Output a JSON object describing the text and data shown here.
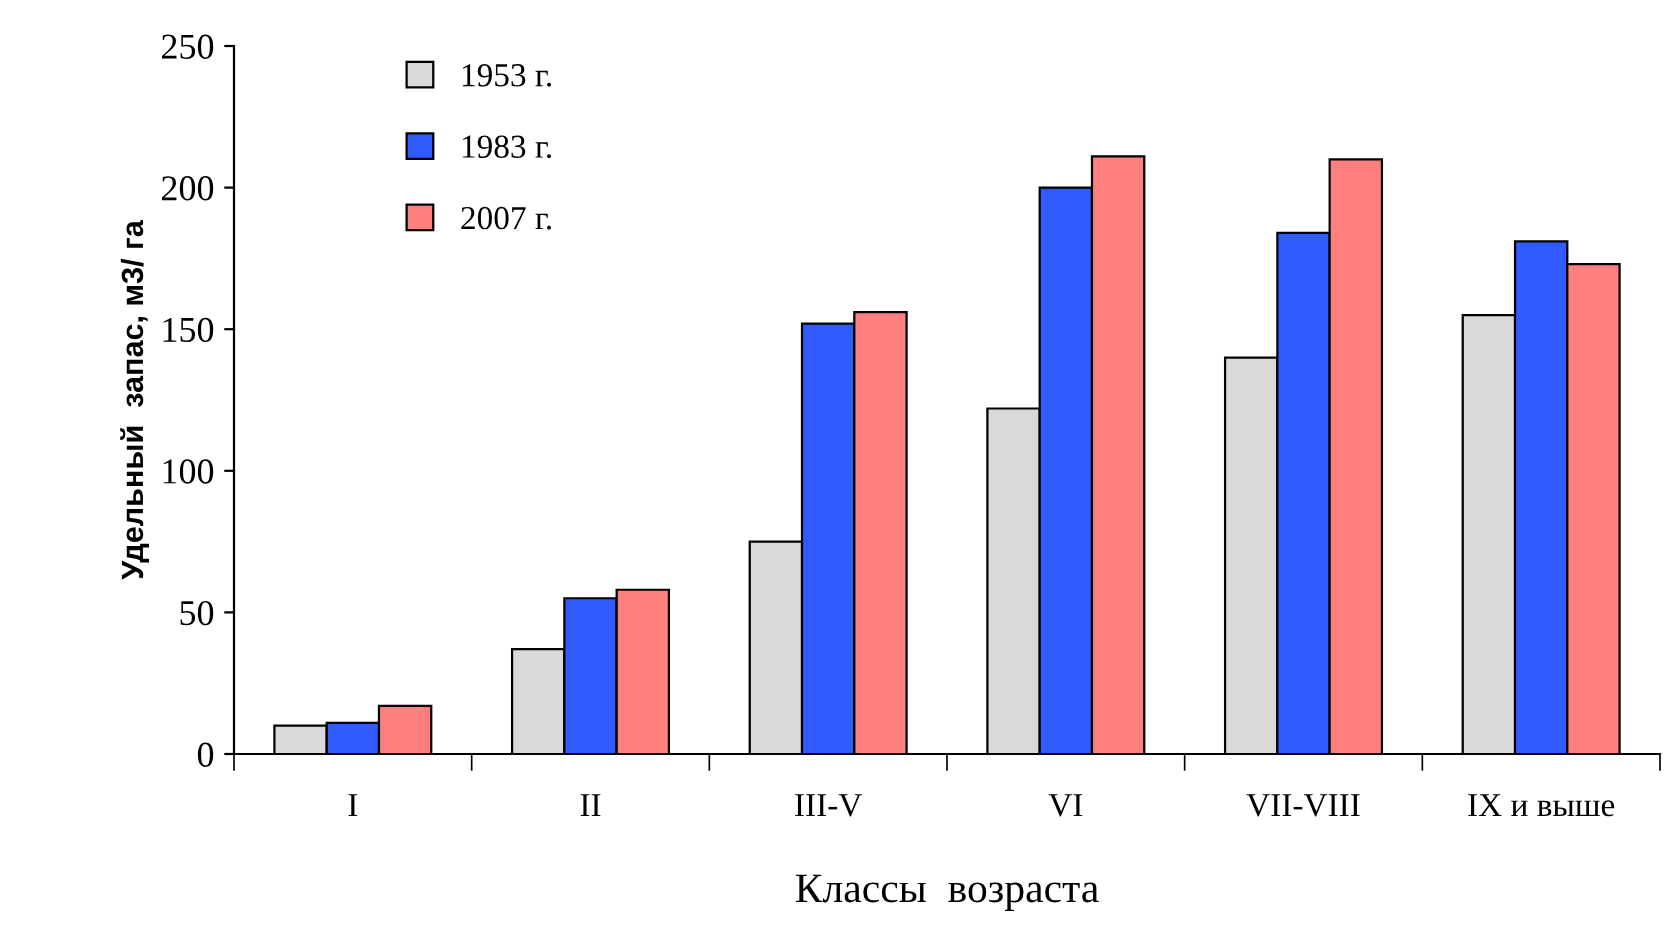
{
  "chart_data": {
    "type": "bar",
    "xlabel": "Классы  возраста",
    "ylabel": "Удельный  запас, м3/ га",
    "categories": [
      "I",
      "II",
      "III-V",
      "VI",
      "VII-VIII",
      "IX и выше"
    ],
    "series": [
      {
        "name": "1953 г.",
        "color": "#d9d9d9",
        "values": [
          10,
          37,
          75,
          122,
          140,
          155
        ]
      },
      {
        "name": "1983 г.",
        "color": "#2f5bff",
        "values": [
          11,
          55,
          152,
          200,
          184,
          181
        ]
      },
      {
        "name": "2007 г.",
        "color": "#ff7f7f",
        "values": [
          17,
          58,
          156,
          211,
          210,
          173
        ]
      }
    ],
    "ylim": [
      0,
      250
    ],
    "yticks": [
      0,
      50,
      100,
      150,
      200,
      250
    ],
    "grid": false,
    "legend": "top left"
  }
}
